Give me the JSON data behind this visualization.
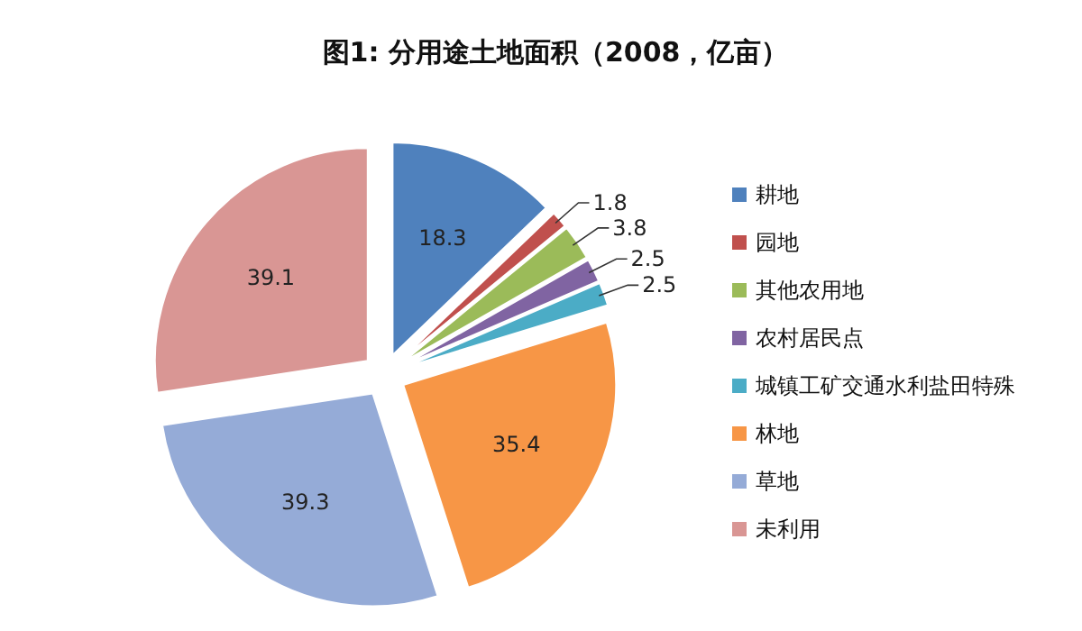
{
  "chart_data": {
    "type": "pie",
    "title": "图1: 分用途土地面积（2008，亿亩）",
    "categories": [
      "耕地",
      "园地",
      "其他农用地",
      "农村居民点",
      "城镇工矿交通水利盐田特殊",
      "林地",
      "草地",
      "未利用"
    ],
    "values": [
      18.3,
      1.8,
      3.8,
      2.5,
      2.5,
      35.4,
      39.3,
      39.1
    ],
    "colors": [
      "#4f81bd",
      "#c0504d",
      "#9bbb59",
      "#8064a2",
      "#4bacc6",
      "#f79646",
      "#95abd7",
      "#d99694"
    ],
    "data_labels": true,
    "legend": "right"
  }
}
